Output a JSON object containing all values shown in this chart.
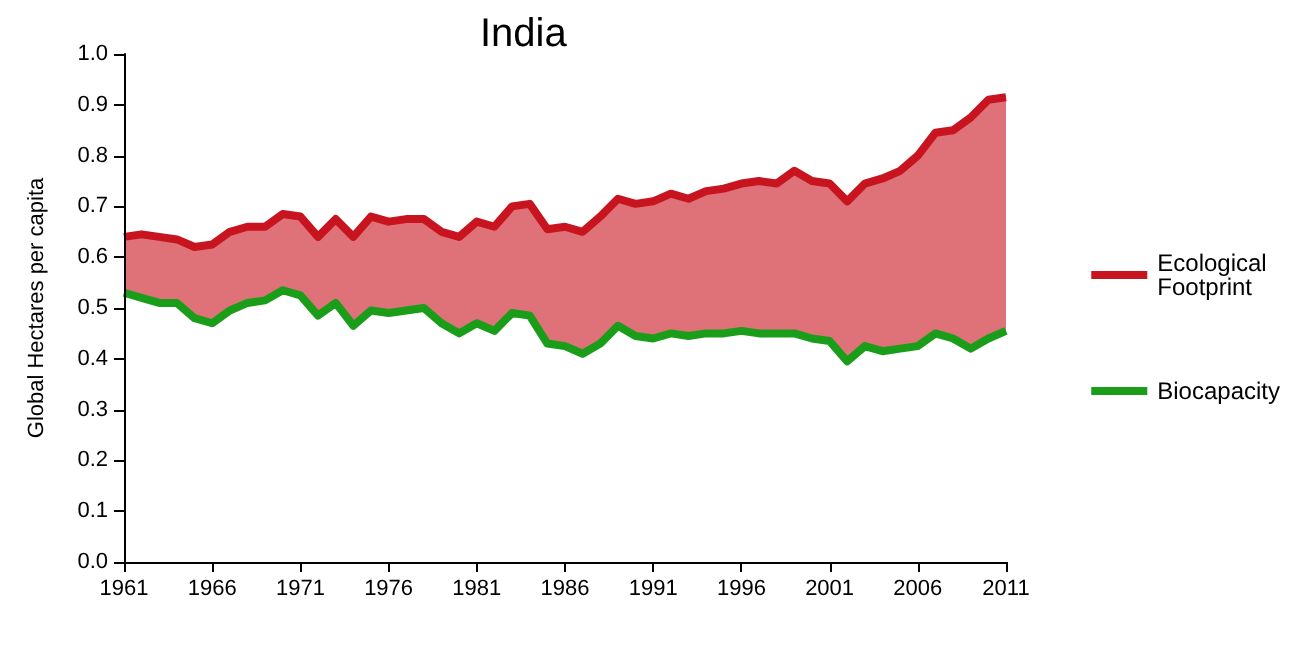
{
  "chart_data": {
    "type": "line",
    "title": "India",
    "ylabel": "Global Hectares per capita",
    "x": [
      1961,
      1962,
      1963,
      1964,
      1965,
      1966,
      1967,
      1968,
      1969,
      1970,
      1971,
      1972,
      1973,
      1974,
      1975,
      1976,
      1977,
      1978,
      1979,
      1980,
      1981,
      1982,
      1983,
      1984,
      1985,
      1986,
      1987,
      1988,
      1989,
      1990,
      1991,
      1992,
      1993,
      1994,
      1995,
      1996,
      1997,
      1998,
      1999,
      2000,
      2001,
      2002,
      2003,
      2004,
      2005,
      2006,
      2007,
      2008,
      2009,
      2010,
      2011
    ],
    "series": [
      {
        "name": "Ecological Footprint",
        "type": "area",
        "color": "#c8141e",
        "values": [
          0.64,
          0.645,
          0.64,
          0.635,
          0.62,
          0.625,
          0.65,
          0.66,
          0.66,
          0.685,
          0.68,
          0.64,
          0.675,
          0.64,
          0.68,
          0.67,
          0.675,
          0.675,
          0.65,
          0.64,
          0.67,
          0.66,
          0.7,
          0.705,
          0.655,
          0.66,
          0.65,
          0.68,
          0.715,
          0.705,
          0.71,
          0.725,
          0.715,
          0.73,
          0.735,
          0.745,
          0.75,
          0.745,
          0.77,
          0.75,
          0.745,
          0.71,
          0.745,
          0.755,
          0.77,
          0.8,
          0.845,
          0.85,
          0.875,
          0.91,
          0.915
        ]
      },
      {
        "name": "Biocapacity",
        "type": "line",
        "color": "#1a9e1a",
        "values": [
          0.53,
          0.52,
          0.51,
          0.51,
          0.48,
          0.47,
          0.495,
          0.51,
          0.515,
          0.535,
          0.525,
          0.485,
          0.51,
          0.465,
          0.495,
          0.49,
          0.495,
          0.5,
          0.47,
          0.45,
          0.47,
          0.455,
          0.49,
          0.485,
          0.43,
          0.425,
          0.41,
          0.43,
          0.465,
          0.445,
          0.44,
          0.45,
          0.445,
          0.45,
          0.45,
          0.455,
          0.45,
          0.45,
          0.45,
          0.44,
          0.435,
          0.395,
          0.425,
          0.415,
          0.42,
          0.425,
          0.45,
          0.44,
          0.42,
          0.44,
          0.455
        ]
      }
    ],
    "xlim": [
      1961,
      2011
    ],
    "xticks": [
      1961,
      1966,
      1971,
      1976,
      1981,
      1986,
      1991,
      1996,
      2001,
      2006,
      2011
    ],
    "ylim": [
      0,
      1
    ],
    "yticks": [
      {
        "value": 0,
        "label": "0.0"
      },
      0.1,
      0.2,
      0.3,
      0.4,
      0.5,
      0.6,
      0.7,
      0.8,
      0.9,
      {
        "value": 1,
        "label": "1.0"
      }
    ],
    "legend": "right",
    "grid": false,
    "marker": "none",
    "line_style": "solid"
  }
}
